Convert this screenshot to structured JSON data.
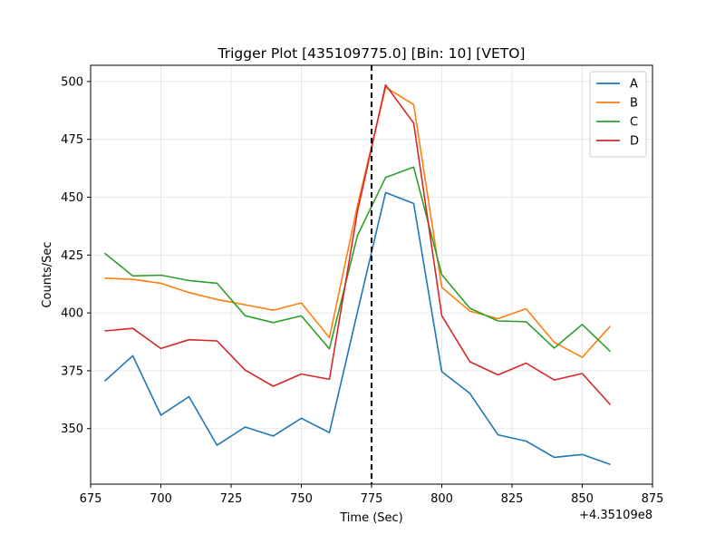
{
  "chart_data": {
    "type": "line",
    "title": "Trigger Plot [435109775.0] [Bin: 10] [VETO]",
    "xlabel": "Time (Sec)",
    "ylabel": "Counts/Sec",
    "x_offset_label": "+4.35109e8",
    "xlim": [
      675,
      875
    ],
    "ylim": [
      326,
      507
    ],
    "xticks": [
      675,
      700,
      725,
      750,
      775,
      800,
      825,
      850,
      875
    ],
    "yticks": [
      350,
      375,
      400,
      425,
      450,
      475,
      500
    ],
    "grid": true,
    "legend_position": "top-right",
    "trigger_time": 775,
    "x": [
      680,
      690,
      700,
      710,
      720,
      730,
      740,
      750,
      760,
      770,
      780,
      790,
      800,
      810,
      820,
      830,
      840,
      850,
      860
    ],
    "series": [
      {
        "name": "A",
        "color": "#1f77b4",
        "values": [
          370.5,
          381.5,
          355.8,
          363.8,
          342.8,
          350.7,
          346.8,
          354.5,
          348.3,
          400.5,
          452,
          447.3,
          374.6,
          365.2,
          347.3,
          344.6,
          337.6,
          338.8,
          334.5
        ]
      },
      {
        "name": "B",
        "color": "#ff7f0e",
        "values": [
          415,
          414.5,
          412.8,
          408.8,
          405.8,
          403.5,
          401.2,
          404.3,
          389.3,
          446.5,
          497.5,
          490,
          411,
          400.8,
          397.5,
          401.8,
          387.3,
          380.8,
          394.3
        ]
      },
      {
        "name": "C",
        "color": "#2ca02c",
        "values": [
          425.8,
          416,
          416.3,
          414,
          412.8,
          398.8,
          395.8,
          398.7,
          384.5,
          433.5,
          458.5,
          463,
          416.5,
          402,
          396.5,
          396.2,
          384.8,
          395,
          383.3
        ]
      },
      {
        "name": "D",
        "color": "#d62728",
        "values": [
          392.2,
          393.3,
          384.6,
          388.4,
          387.9,
          375.3,
          368.3,
          373.6,
          371.3,
          444,
          498.5,
          482,
          398.8,
          378.9,
          373.2,
          378.3,
          371,
          373.8,
          360.3
        ]
      }
    ]
  }
}
